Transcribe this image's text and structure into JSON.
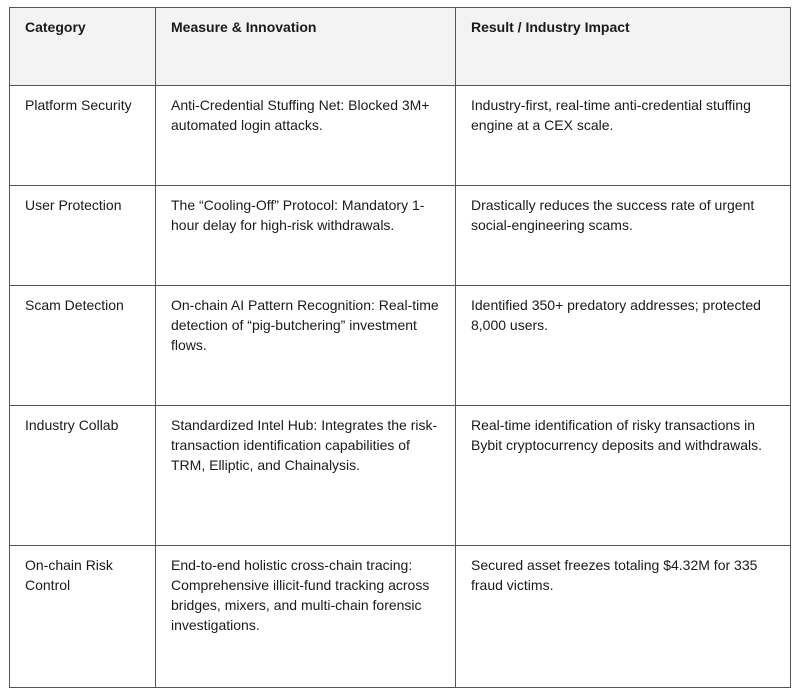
{
  "table": {
    "headers": [
      "Category",
      "Measure & Innovation",
      "Result / Industry Impact"
    ],
    "rows": [
      [
        "Platform Security",
        "Anti-Credential Stuffing Net: Blocked 3M+ automated login attacks.",
        "Industry-first, real-time anti-credential stuffing engine at a CEX scale."
      ],
      [
        "User Protection",
        "The “Cooling-Off” Protocol: Mandatory 1-hour delay for high-risk withdrawals.",
        "Drastically reduces the success rate of urgent social-engineering scams."
      ],
      [
        "Scam Detection",
        "On-chain AI Pattern Recognition: Real-time detection of “pig-butchering” investment flows.",
        "Identified 350+ predatory addresses; protected 8,000 users."
      ],
      [
        "Industry Collab",
        "Standardized Intel Hub: Integrates the risk-transaction identification capabilities of TRM, Elliptic, and Chainalysis.",
        "Real-time identification of risky transactions in Bybit cryptocurrency deposits and withdrawals."
      ],
      [
        "On-chain Risk Control",
        "End-to-end holistic cross-chain tracing: Comprehensive illicit-fund tracking across bridges, mixers, and multi-chain forensic investigations.",
        "Secured asset freezes totaling $4.32M for 335 fraud victims."
      ]
    ]
  }
}
